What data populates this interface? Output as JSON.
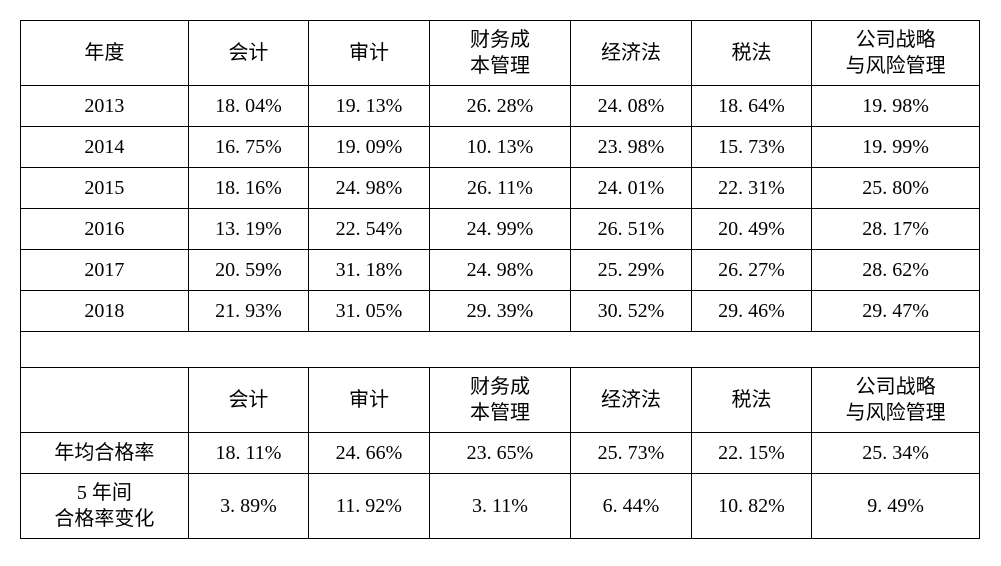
{
  "table": {
    "columns": [
      "年度",
      "会计",
      "审计",
      "财务成\n本管理",
      "经济法",
      "税法",
      "公司战略\n与风险管理"
    ],
    "rows": [
      [
        "2013",
        "18. 04%",
        "19. 13%",
        "26. 28%",
        "24. 08%",
        "18. 64%",
        "19. 98%"
      ],
      [
        "2014",
        "16. 75%",
        "19. 09%",
        "10. 13%",
        "23. 98%",
        "15. 73%",
        "19. 99%"
      ],
      [
        "2015",
        "18. 16%",
        "24. 98%",
        "26. 11%",
        "24. 01%",
        "22. 31%",
        "25. 80%"
      ],
      [
        "2016",
        "13. 19%",
        "22. 54%",
        "24. 99%",
        "26. 51%",
        "20. 49%",
        "28. 17%"
      ],
      [
        "2017",
        "20. 59%",
        "31. 18%",
        "24. 98%",
        "25. 29%",
        "26. 27%",
        "28. 62%"
      ],
      [
        "2018",
        "21. 93%",
        "31. 05%",
        "29. 39%",
        "30. 52%",
        "29. 46%",
        "29. 47%"
      ]
    ],
    "columns2": [
      "",
      "会计",
      "审计",
      "财务成\n本管理",
      "经济法",
      "税法",
      "公司战略\n与风险管理"
    ],
    "summary": [
      [
        "年均合格率",
        "18. 11%",
        "24. 66%",
        "23. 65%",
        "25. 73%",
        "22. 15%",
        "25. 34%"
      ],
      [
        "5 年间\n合格率变化",
        "3. 89%",
        "11. 92%",
        "3. 11%",
        "6. 44%",
        "10. 82%",
        "9. 49%"
      ]
    ],
    "col_widths": [
      "col-year",
      "col-sub",
      "col-sub",
      "col-sub",
      "col-sub",
      "col-sub",
      "col-last"
    ],
    "border_color": "#000000",
    "background_color": "#ffffff",
    "text_color": "#000000",
    "font_size": 20
  }
}
